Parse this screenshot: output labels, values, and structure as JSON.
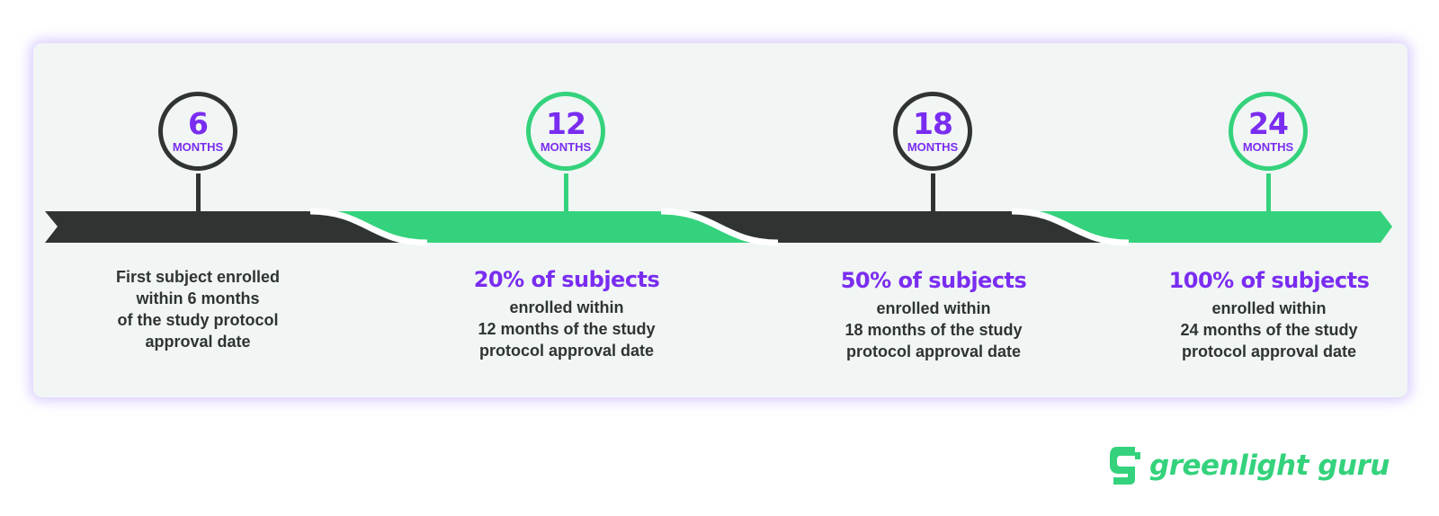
{
  "colors": {
    "accent_purple": "#7a2df0",
    "brand_green": "#34d27c",
    "dark": "#2f3433",
    "card_background": "#f1f6f4"
  },
  "markers": [
    {
      "number": "6",
      "unit": "MONTHS",
      "style": "dark"
    },
    {
      "number": "12",
      "unit": "MONTHS",
      "style": "green"
    },
    {
      "number": "18",
      "unit": "MONTHS",
      "style": "dark"
    },
    {
      "number": "24",
      "unit": "MONTHS",
      "style": "green"
    }
  ],
  "milestones": [
    {
      "headline": "",
      "lines": [
        "First subject enrolled",
        "within 6 months",
        "of the study protocol",
        "approval date"
      ]
    },
    {
      "headline": "20% of subjects",
      "lines": [
        "enrolled within",
        "12 months of the study",
        "protocol approval date"
      ]
    },
    {
      "headline": "50% of subjects",
      "lines": [
        "enrolled within",
        "18 months of the study",
        "protocol approval date"
      ]
    },
    {
      "headline": "100% of subjects",
      "lines": [
        "enrolled within",
        "24 months of the study",
        "protocol approval date"
      ]
    }
  ],
  "logo": {
    "text": "greenlight guru",
    "icon": "greenlight-guru-g-icon"
  }
}
